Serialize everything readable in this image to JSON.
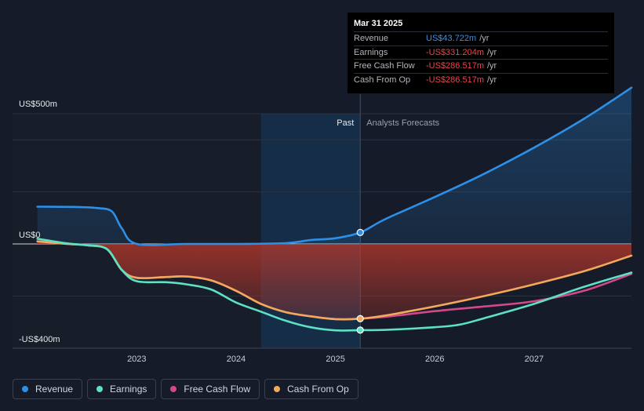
{
  "tooltip": {
    "date": "Mar 31 2025",
    "rows": [
      {
        "label": "Revenue",
        "value": "US$43.722m",
        "unit": "/yr"
      },
      {
        "label": "Earnings",
        "value": "-US$331.204m",
        "unit": "/yr"
      },
      {
        "label": "Free Cash Flow",
        "value": "-US$286.517m",
        "unit": "/yr"
      },
      {
        "label": "Cash From Op",
        "value": "-US$286.517m",
        "unit": "/yr"
      }
    ]
  },
  "legend": [
    {
      "label": "Revenue",
      "color": "#2e8fe6"
    },
    {
      "label": "Earnings",
      "color": "#5ee0c4"
    },
    {
      "label": "Free Cash Flow",
      "color": "#d4488a"
    },
    {
      "label": "Cash From Op",
      "color": "#f2a95c"
    }
  ],
  "chart_data": {
    "type": "line",
    "title": "",
    "xlabel": "",
    "ylabel": "",
    "ylim": [
      -400,
      500
    ],
    "y_tick_labels": [
      {
        "value": 500,
        "label": "US$500m"
      },
      {
        "value": 0,
        "label": "US$0"
      },
      {
        "value": -400,
        "label": "-US$400m"
      }
    ],
    "x_tick_labels": [
      {
        "value": 2023.0,
        "label": "2023"
      },
      {
        "value": 2024.0,
        "label": "2024"
      },
      {
        "value": 2025.0,
        "label": "2025"
      },
      {
        "value": 2026.0,
        "label": "2026"
      },
      {
        "value": 2027.0,
        "label": "2027"
      }
    ],
    "xlim": [
      2021.75,
      2027.98
    ],
    "past_label": "Past",
    "forecast_label": "Analysts Forecasts",
    "divider_x": 2025.25,
    "highlight_start": 2024.25,
    "series": [
      {
        "name": "Revenue",
        "color": "#2e8fe6",
        "fill": true,
        "x": [
          2022.0,
          2022.4,
          2022.6,
          2022.75,
          2022.85,
          2023.0,
          2023.5,
          2024.0,
          2024.5,
          2024.75,
          2025.0,
          2025.25,
          2025.5,
          2026.0,
          2026.5,
          2027.0,
          2027.5,
          2027.98
        ],
        "values": [
          143,
          142,
          138,
          125,
          60,
          0,
          0,
          0,
          3,
          15,
          22,
          44,
          95,
          180,
          270,
          370,
          480,
          600
        ]
      },
      {
        "name": "Earnings",
        "color": "#5ee0c4",
        "fill": false,
        "x": [
          2022.0,
          2022.3,
          2022.5,
          2022.7,
          2022.85,
          2023.0,
          2023.3,
          2023.5,
          2023.75,
          2024.0,
          2024.25,
          2024.5,
          2024.75,
          2025.0,
          2025.25,
          2025.5,
          2026.0,
          2026.25,
          2026.5,
          2027.0,
          2027.5,
          2027.98
        ],
        "values": [
          20,
          2,
          -5,
          -20,
          -100,
          -143,
          -147,
          -155,
          -175,
          -225,
          -260,
          -295,
          -320,
          -332,
          -331,
          -330,
          -320,
          -310,
          -285,
          -230,
          -165,
          -110
        ]
      },
      {
        "name": "Free Cash Flow",
        "color": "#d4488a",
        "fill": false,
        "x": [
          2022.0,
          2022.3,
          2022.5,
          2022.7,
          2022.85,
          2023.0,
          2023.3,
          2023.5,
          2023.75,
          2024.0,
          2024.25,
          2024.5,
          2024.75,
          2025.0,
          2025.25,
          2025.5,
          2026.0,
          2026.5,
          2027.0,
          2027.5,
          2027.98
        ],
        "values": [
          10,
          0,
          -5,
          -20,
          -100,
          -130,
          -127,
          -125,
          -140,
          -180,
          -230,
          -262,
          -278,
          -289,
          -287,
          -280,
          -258,
          -240,
          -220,
          -180,
          -115
        ]
      },
      {
        "name": "Cash From Op",
        "color": "#f2a95c",
        "fill": true,
        "x": [
          2022.0,
          2022.3,
          2022.5,
          2022.7,
          2022.85,
          2023.0,
          2023.3,
          2023.5,
          2023.75,
          2024.0,
          2024.25,
          2024.5,
          2024.75,
          2025.0,
          2025.25,
          2025.5,
          2026.0,
          2026.5,
          2027.0,
          2027.5,
          2027.98
        ],
        "values": [
          10,
          0,
          -5,
          -20,
          -100,
          -130,
          -127,
          -125,
          -140,
          -180,
          -230,
          -262,
          -278,
          -289,
          -287,
          -275,
          -240,
          -200,
          -155,
          -105,
          -45
        ]
      }
    ],
    "markers": [
      {
        "series": "Revenue",
        "x": 2025.25,
        "value": 44
      },
      {
        "series": "Cash From Op",
        "x": 2025.25,
        "value": -287
      },
      {
        "series": "Earnings",
        "x": 2025.25,
        "value": -331
      }
    ]
  }
}
